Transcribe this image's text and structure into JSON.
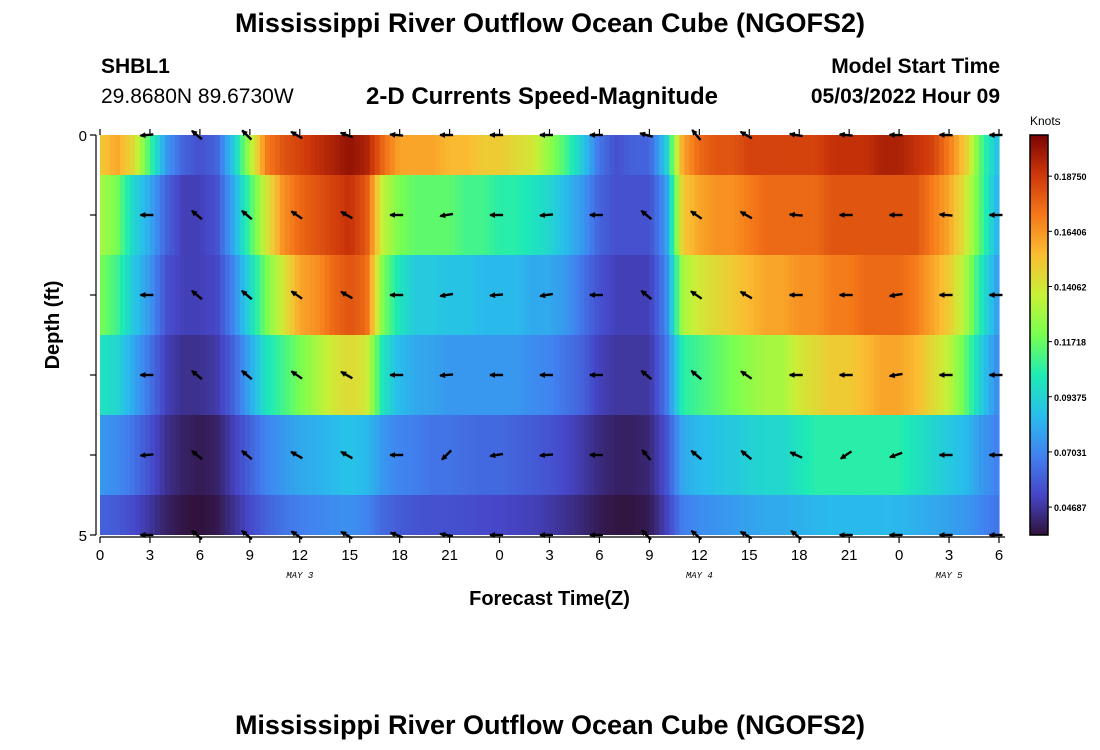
{
  "header": {
    "title": "Mississippi River Outflow Ocean Cube (NGOFS2)",
    "station_id": "SHBL1",
    "station_coords": "29.8680N  89.6730W",
    "subtitle": "2-D Currents Speed-Magnitude",
    "model_start_label": "Model Start Time",
    "model_start_value": "05/03/2022 Hour 09"
  },
  "footer": {
    "title": "Mississippi River Outflow Ocean Cube (NGOFS2)"
  },
  "chart_data": {
    "type": "heatmap",
    "title": "2-D Currents Speed-Magnitude",
    "xlabel": "Forecast Time(Z)",
    "ylabel": "Depth (ft)",
    "colorbar_label": "Knots",
    "x_tick_labels": [
      "0",
      "3",
      "6",
      "9",
      "12",
      "15",
      "18",
      "21",
      "0",
      "3",
      "6",
      "9",
      "12",
      "15",
      "18",
      "21",
      "0",
      "3",
      "6"
    ],
    "x_hours": [
      0,
      3,
      6,
      9,
      12,
      15,
      18,
      21,
      24,
      27,
      30,
      33,
      36,
      39,
      42,
      45,
      48,
      51,
      54
    ],
    "date_labels": [
      {
        "label": "MAY 3",
        "hour": 12
      },
      {
        "label": "MAY 4",
        "hour": 36
      },
      {
        "label": "MAY 5",
        "hour": 51
      }
    ],
    "ylim": [
      0,
      5
    ],
    "y_tick_labels": [
      "0",
      "",
      "",
      "",
      "",
      "5"
    ],
    "y_ticks": [
      0,
      1,
      2,
      3,
      4,
      5
    ],
    "colorbar": {
      "min": 0.035,
      "max": 0.205,
      "ticks": [
        0.04687,
        0.07031,
        0.09375,
        0.11718,
        0.14062,
        0.16406,
        0.1875
      ],
      "tick_labels": [
        "0.04687",
        "0.07031",
        "0.09375",
        "0.11718",
        "0.14062",
        "0.16406",
        "0.18750"
      ],
      "colormap": "turbo"
    },
    "key_hours": [
      0,
      1,
      2,
      3,
      4,
      5,
      6,
      7,
      8,
      9,
      10,
      11,
      12,
      13,
      14,
      15,
      16,
      17,
      18,
      19,
      20,
      21,
      22,
      23,
      24,
      25,
      26,
      27,
      28,
      29,
      30,
      31,
      32,
      33,
      34,
      35,
      36,
      37,
      38,
      39,
      40,
      41,
      42,
      43,
      44,
      45,
      46,
      47,
      48,
      49,
      50,
      51,
      52,
      53,
      54
    ],
    "speed_layers": [
      {
        "depth": 0,
        "values": [
          0.15,
          0.16,
          0.145,
          0.11,
          0.075,
          0.06,
          0.055,
          0.06,
          0.09,
          0.13,
          0.17,
          0.18,
          0.185,
          0.19,
          0.195,
          0.2,
          0.195,
          0.175,
          0.16,
          0.16,
          0.16,
          0.155,
          0.155,
          0.15,
          0.15,
          0.145,
          0.14,
          0.125,
          0.11,
          0.09,
          0.065,
          0.055,
          0.06,
          0.06,
          0.09,
          0.16,
          0.175,
          0.18,
          0.18,
          0.185,
          0.185,
          0.185,
          0.185,
          0.185,
          0.19,
          0.19,
          0.19,
          0.195,
          0.195,
          0.19,
          0.185,
          0.17,
          0.15,
          0.11,
          0.085
        ]
      },
      {
        "depth": 1,
        "values": [
          0.13,
          0.12,
          0.095,
          0.08,
          0.06,
          0.05,
          0.05,
          0.055,
          0.08,
          0.11,
          0.14,
          0.165,
          0.175,
          0.18,
          0.185,
          0.19,
          0.18,
          0.135,
          0.12,
          0.115,
          0.115,
          0.115,
          0.11,
          0.11,
          0.105,
          0.105,
          0.1,
          0.095,
          0.085,
          0.075,
          0.06,
          0.055,
          0.055,
          0.055,
          0.075,
          0.15,
          0.16,
          0.165,
          0.165,
          0.17,
          0.175,
          0.175,
          0.175,
          0.175,
          0.18,
          0.18,
          0.18,
          0.18,
          0.18,
          0.18,
          0.17,
          0.16,
          0.14,
          0.11,
          0.08
        ]
      },
      {
        "depth": 2,
        "values": [
          0.12,
          0.11,
          0.09,
          0.075,
          0.055,
          0.05,
          0.05,
          0.052,
          0.07,
          0.095,
          0.12,
          0.14,
          0.16,
          0.165,
          0.175,
          0.18,
          0.175,
          0.12,
          0.1,
          0.09,
          0.09,
          0.088,
          0.088,
          0.085,
          0.085,
          0.085,
          0.08,
          0.08,
          0.075,
          0.065,
          0.055,
          0.05,
          0.05,
          0.05,
          0.07,
          0.13,
          0.14,
          0.145,
          0.15,
          0.155,
          0.16,
          0.16,
          0.165,
          0.165,
          0.17,
          0.17,
          0.175,
          0.175,
          0.175,
          0.17,
          0.16,
          0.15,
          0.13,
          0.1,
          0.075
        ]
      },
      {
        "depth": 3,
        "values": [
          0.1,
          0.095,
          0.08,
          0.065,
          0.05,
          0.045,
          0.045,
          0.048,
          0.06,
          0.08,
          0.1,
          0.11,
          0.12,
          0.13,
          0.14,
          0.145,
          0.14,
          0.1,
          0.085,
          0.08,
          0.078,
          0.075,
          0.075,
          0.075,
          0.075,
          0.075,
          0.072,
          0.07,
          0.065,
          0.06,
          0.05,
          0.047,
          0.047,
          0.047,
          0.065,
          0.105,
          0.11,
          0.115,
          0.12,
          0.125,
          0.13,
          0.13,
          0.14,
          0.145,
          0.15,
          0.15,
          0.155,
          0.16,
          0.16,
          0.155,
          0.145,
          0.135,
          0.115,
          0.09,
          0.07
        ]
      },
      {
        "depth": 4,
        "values": [
          0.075,
          0.072,
          0.065,
          0.055,
          0.045,
          0.04,
          0.038,
          0.04,
          0.05,
          0.06,
          0.07,
          0.075,
          0.08,
          0.082,
          0.085,
          0.088,
          0.085,
          0.075,
          0.07,
          0.068,
          0.065,
          0.065,
          0.063,
          0.062,
          0.062,
          0.06,
          0.058,
          0.056,
          0.052,
          0.048,
          0.043,
          0.04,
          0.04,
          0.042,
          0.055,
          0.08,
          0.085,
          0.088,
          0.09,
          0.093,
          0.095,
          0.095,
          0.1,
          0.105,
          0.105,
          0.105,
          0.105,
          0.105,
          0.105,
          0.1,
          0.095,
          0.09,
          0.085,
          0.075,
          0.068
        ]
      },
      {
        "depth": 5,
        "values": [
          0.06,
          0.058,
          0.053,
          0.047,
          0.04,
          0.036,
          0.035,
          0.037,
          0.045,
          0.053,
          0.06,
          0.065,
          0.068,
          0.07,
          0.072,
          0.073,
          0.07,
          0.062,
          0.058,
          0.056,
          0.055,
          0.055,
          0.054,
          0.053,
          0.052,
          0.051,
          0.05,
          0.048,
          0.045,
          0.042,
          0.038,
          0.036,
          0.036,
          0.038,
          0.05,
          0.068,
          0.072,
          0.074,
          0.076,
          0.078,
          0.08,
          0.08,
          0.082,
          0.084,
          0.085,
          0.085,
          0.085,
          0.085,
          0.084,
          0.082,
          0.08,
          0.078,
          0.075,
          0.07,
          0.065
        ]
      }
    ],
    "vector_hours": [
      3,
      6,
      9,
      12,
      15,
      18,
      21,
      24,
      27,
      30,
      33,
      36,
      39,
      42,
      45,
      48,
      51,
      54
    ],
    "vector_directions_deg": [
      [
        185,
        140,
        135,
        150,
        160,
        175,
        180,
        180,
        180,
        180,
        165,
        130,
        150,
        170,
        175,
        178,
        178,
        180
      ],
      [
        180,
        140,
        140,
        145,
        150,
        180,
        190,
        180,
        185,
        180,
        140,
        145,
        150,
        175,
        180,
        180,
        175,
        180
      ],
      [
        180,
        140,
        140,
        145,
        150,
        180,
        190,
        185,
        190,
        180,
        140,
        145,
        150,
        180,
        180,
        190,
        180,
        180
      ],
      [
        180,
        140,
        140,
        145,
        150,
        180,
        185,
        180,
        180,
        180,
        140,
        140,
        145,
        180,
        180,
        190,
        180,
        180
      ],
      [
        185,
        140,
        140,
        150,
        150,
        180,
        225,
        190,
        185,
        180,
        130,
        140,
        140,
        155,
        215,
        200,
        180,
        180
      ],
      [
        180,
        140,
        140,
        145,
        150,
        160,
        170,
        180,
        180,
        180,
        135,
        140,
        150,
        140,
        180,
        180,
        180,
        180
      ]
    ]
  }
}
